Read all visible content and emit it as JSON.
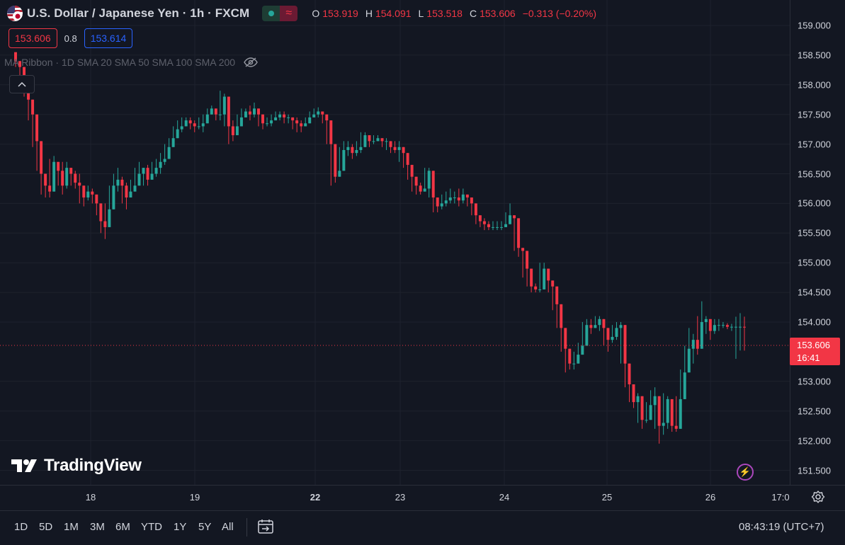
{
  "header": {
    "symbol_title": "U.S. Dollar / Japanese Yen · 1h · FXCM",
    "ohlc": {
      "o_label": "O",
      "o_value": "153.919",
      "h_label": "H",
      "h_value": "154.091",
      "l_label": "L",
      "l_value": "153.518",
      "c_label": "C",
      "c_value": "153.606",
      "change": "−0.313 (−0.20%)"
    },
    "market_status_icon": "green-dot",
    "market_pill_icon": "wave-icon"
  },
  "trade": {
    "sell_price": "153.606",
    "spread": "0.8",
    "buy_price": "153.614"
  },
  "indicator": {
    "label": "MA Ribbon · 1D SMA 20 SMA 50 SMA 100 SMA 200",
    "visibility_icon": "eye-off-icon"
  },
  "price_axis": {
    "ticks": [
      "159.000",
      "158.500",
      "158.000",
      "157.500",
      "157.000",
      "156.500",
      "156.000",
      "155.500",
      "155.000",
      "154.500",
      "154.000",
      "153.000",
      "152.500",
      "152.000",
      "151.500"
    ],
    "last_price": "153.606",
    "countdown": "16:41"
  },
  "time_axis": {
    "ticks": [
      {
        "label": "18",
        "bold": false
      },
      {
        "label": "19",
        "bold": false
      },
      {
        "label": "22",
        "bold": true
      },
      {
        "label": "23",
        "bold": false
      },
      {
        "label": "24",
        "bold": false
      },
      {
        "label": "25",
        "bold": false
      },
      {
        "label": "26",
        "bold": false
      },
      {
        "label": "17:0",
        "bold": false
      }
    ]
  },
  "timeframes": [
    "1D",
    "5D",
    "1M",
    "3M",
    "6M",
    "YTD",
    "1Y",
    "5Y",
    "All"
  ],
  "clock": "08:43:19 (UTC+7)",
  "logo_text": "TradingView",
  "colors": {
    "background": "#131722",
    "up": "#26a69a",
    "down": "#f23645",
    "grid": "#1e222d",
    "text": "#d1d4dc"
  },
  "chart_data": {
    "type": "candlestick",
    "y_range": [
      151.3,
      159.4
    ],
    "close_start": 158.55,
    "candles": [
      [
        158.4,
        158.45,
        158.3
      ],
      [
        158.3,
        158.35,
        158.0
      ],
      [
        158.0,
        158.1,
        157.8
      ],
      [
        157.75,
        157.8,
        157.4
      ],
      [
        157.5,
        157.5,
        156.95
      ],
      [
        157.05,
        157.1,
        156.55
      ],
      [
        156.5,
        156.55,
        156.15
      ],
      [
        156.3,
        156.4,
        156.1
      ],
      [
        156.2,
        156.75,
        156.1
      ],
      [
        156.7,
        156.8,
        156.45
      ],
      [
        156.55,
        156.65,
        156.3
      ],
      [
        156.3,
        156.7,
        156.15
      ],
      [
        156.6,
        156.7,
        156.25
      ],
      [
        156.5,
        156.6,
        156.3
      ],
      [
        156.35,
        156.55,
        156.25
      ],
      [
        156.3,
        156.5,
        156.0
      ],
      [
        156.1,
        156.3,
        155.95
      ],
      [
        156.2,
        156.3,
        156.05
      ],
      [
        156.15,
        156.25,
        156.0
      ],
      [
        156.0,
        156.1,
        155.8
      ],
      [
        155.7,
        155.8,
        155.5
      ],
      [
        155.6,
        156.0,
        155.4
      ],
      [
        155.9,
        156.3,
        155.8
      ],
      [
        156.3,
        156.5,
        156.2
      ],
      [
        156.4,
        156.6,
        156.2
      ],
      [
        156.3,
        156.45,
        156.0
      ],
      [
        156.1,
        156.35,
        155.9
      ],
      [
        156.2,
        156.4,
        156.1
      ],
      [
        156.3,
        156.6,
        156.2
      ],
      [
        156.5,
        156.7,
        156.35
      ],
      [
        156.6,
        156.6,
        156.3
      ],
      [
        156.4,
        156.65,
        156.3
      ],
      [
        156.5,
        156.7,
        156.4
      ],
      [
        156.6,
        156.75,
        156.45
      ],
      [
        156.7,
        156.85,
        156.5
      ],
      [
        156.75,
        157.0,
        156.65
      ],
      [
        156.95,
        157.1,
        156.85
      ],
      [
        157.1,
        157.3,
        157.0
      ],
      [
        157.25,
        157.4,
        157.15
      ],
      [
        157.3,
        157.45,
        157.2
      ],
      [
        157.4,
        157.45,
        157.3
      ],
      [
        157.35,
        157.45,
        157.25
      ],
      [
        157.3,
        157.4,
        157.2
      ],
      [
        157.3,
        157.45,
        157.25
      ],
      [
        157.35,
        157.5,
        157.2
      ],
      [
        157.5,
        157.6,
        157.4
      ],
      [
        157.6,
        157.65,
        157.5
      ],
      [
        157.5,
        157.6,
        157.4
      ],
      [
        157.5,
        157.9,
        157.4
      ],
      [
        157.8,
        157.85,
        157.3
      ],
      [
        157.3,
        157.35,
        157.0
      ],
      [
        157.15,
        157.4,
        157.05
      ],
      [
        157.3,
        157.5,
        157.2
      ],
      [
        157.45,
        157.6,
        157.35
      ],
      [
        157.55,
        157.6,
        157.45
      ],
      [
        157.5,
        157.65,
        157.4
      ],
      [
        157.6,
        157.7,
        157.45
      ],
      [
        157.5,
        157.55,
        157.3
      ],
      [
        157.35,
        157.45,
        157.25
      ],
      [
        157.35,
        157.45,
        157.3
      ],
      [
        157.4,
        157.5,
        157.3
      ],
      [
        157.45,
        157.55,
        157.4
      ],
      [
        157.5,
        157.55,
        157.4
      ],
      [
        157.45,
        157.55,
        157.35
      ],
      [
        157.45,
        157.5,
        157.35
      ],
      [
        157.4,
        157.45,
        157.25
      ],
      [
        157.35,
        157.45,
        157.2
      ],
      [
        157.3,
        157.4,
        157.2
      ],
      [
        157.35,
        157.45,
        157.3
      ],
      [
        157.45,
        157.55,
        157.35
      ],
      [
        157.5,
        157.6,
        157.45
      ],
      [
        157.55,
        157.62,
        157.45
      ],
      [
        157.5,
        157.55,
        157.35
      ],
      [
        157.4,
        157.42,
        157.0
      ],
      [
        157.0,
        157.05,
        156.3
      ],
      [
        156.45,
        156.55,
        156.35
      ],
      [
        156.55,
        156.95,
        156.45
      ],
      [
        156.9,
        157.05,
        156.8
      ],
      [
        156.95,
        157.05,
        156.8
      ],
      [
        156.85,
        157.0,
        156.75
      ],
      [
        156.9,
        157.05,
        156.8
      ],
      [
        156.95,
        157.2,
        156.85
      ],
      [
        157.15,
        157.2,
        157.0
      ],
      [
        157.05,
        157.1,
        156.95
      ],
      [
        157.05,
        157.15,
        157.0
      ],
      [
        157.1,
        157.15,
        157.05
      ],
      [
        157.05,
        157.1,
        156.95
      ],
      [
        157.05,
        157.1,
        156.9
      ],
      [
        156.95,
        157.05,
        156.85
      ],
      [
        156.9,
        157.05,
        156.85
      ],
      [
        156.95,
        157.05,
        156.7
      ],
      [
        156.85,
        156.9,
        156.6
      ],
      [
        156.65,
        156.7,
        156.4
      ],
      [
        156.45,
        156.6,
        156.2
      ],
      [
        156.3,
        156.4,
        156.15
      ],
      [
        156.2,
        156.35,
        156.15
      ],
      [
        156.25,
        156.6,
        156.2
      ],
      [
        156.55,
        156.6,
        156.1
      ],
      [
        156.1,
        156.15,
        155.85
      ],
      [
        155.95,
        156.05,
        155.85
      ],
      [
        156.0,
        156.15,
        155.9
      ],
      [
        156.05,
        156.2,
        155.95
      ],
      [
        156.1,
        156.25,
        156.0
      ],
      [
        156.1,
        156.2,
        156.0
      ],
      [
        156.05,
        156.25,
        155.95
      ],
      [
        156.15,
        156.25,
        156.0
      ],
      [
        156.1,
        156.15,
        155.95
      ],
      [
        156.0,
        156.05,
        155.8
      ],
      [
        155.8,
        155.9,
        155.65
      ],
      [
        155.7,
        155.8,
        155.6
      ],
      [
        155.65,
        155.75,
        155.55
      ],
      [
        155.6,
        155.7,
        155.55
      ],
      [
        155.6,
        155.7,
        155.55
      ],
      [
        155.6,
        155.7,
        155.55
      ],
      [
        155.6,
        155.7,
        155.55
      ],
      [
        155.65,
        155.85,
        155.6
      ],
      [
        155.8,
        156.0,
        155.7
      ],
      [
        155.75,
        155.8,
        155.2
      ],
      [
        155.25,
        155.3,
        155.1
      ],
      [
        155.2,
        155.25,
        154.75
      ],
      [
        154.9,
        155.0,
        154.6
      ],
      [
        154.6,
        154.7,
        154.5
      ],
      [
        154.55,
        154.65,
        154.5
      ],
      [
        154.55,
        155.0,
        154.5
      ],
      [
        154.9,
        155.0,
        154.6
      ],
      [
        154.7,
        154.9,
        154.5
      ],
      [
        154.6,
        154.7,
        154.2
      ],
      [
        154.3,
        154.35,
        153.9
      ],
      [
        153.9,
        154.0,
        153.5
      ],
      [
        153.55,
        153.6,
        153.15
      ],
      [
        153.3,
        153.4,
        153.2
      ],
      [
        153.3,
        153.5,
        153.2
      ],
      [
        153.45,
        153.65,
        153.4
      ],
      [
        153.6,
        154.0,
        153.55
      ],
      [
        153.95,
        154.05,
        153.8
      ],
      [
        153.9,
        154.05,
        153.8
      ],
      [
        153.95,
        154.1,
        153.9
      ],
      [
        154.05,
        154.1,
        153.85
      ],
      [
        153.9,
        153.95,
        153.6
      ],
      [
        153.7,
        153.8,
        153.5
      ],
      [
        153.75,
        153.95,
        153.65
      ],
      [
        153.9,
        154.0,
        153.7
      ],
      [
        153.95,
        154.0,
        153.3
      ],
      [
        153.3,
        153.4,
        152.9
      ],
      [
        152.95,
        153.0,
        152.65
      ],
      [
        152.65,
        152.9,
        152.55
      ],
      [
        152.75,
        152.8,
        152.3
      ],
      [
        152.35,
        152.4,
        152.2
      ],
      [
        152.35,
        152.65,
        152.3
      ],
      [
        152.6,
        152.85,
        152.5
      ],
      [
        152.75,
        152.9,
        152.2
      ],
      [
        152.25,
        152.3,
        151.95
      ],
      [
        152.3,
        152.8,
        152.1
      ],
      [
        152.7,
        152.75,
        152.2
      ],
      [
        152.25,
        152.35,
        152.15
      ],
      [
        152.2,
        152.75,
        152.15
      ],
      [
        152.7,
        153.2,
        152.65
      ],
      [
        153.15,
        153.6,
        153.1
      ],
      [
        153.55,
        153.9,
        153.3
      ],
      [
        153.7,
        153.8,
        153.3
      ],
      [
        153.55,
        154.1,
        153.45
      ],
      [
        154.0,
        154.35,
        153.9
      ],
      [
        154.05,
        154.1,
        153.8
      ],
      [
        153.85,
        154.05,
        153.7
      ],
      [
        153.95,
        154.05,
        153.8
      ],
      [
        153.95,
        154.05,
        153.85
      ],
      [
        153.95,
        154.0,
        153.9
      ],
      [
        153.92,
        153.98,
        153.88
      ],
      [
        153.92,
        153.97,
        153.85
      ],
      [
        153.92,
        154.09,
        153.38
      ],
      [
        153.92,
        154.15,
        153.52
      ],
      [
        153.919,
        154.091,
        153.518
      ]
    ]
  }
}
